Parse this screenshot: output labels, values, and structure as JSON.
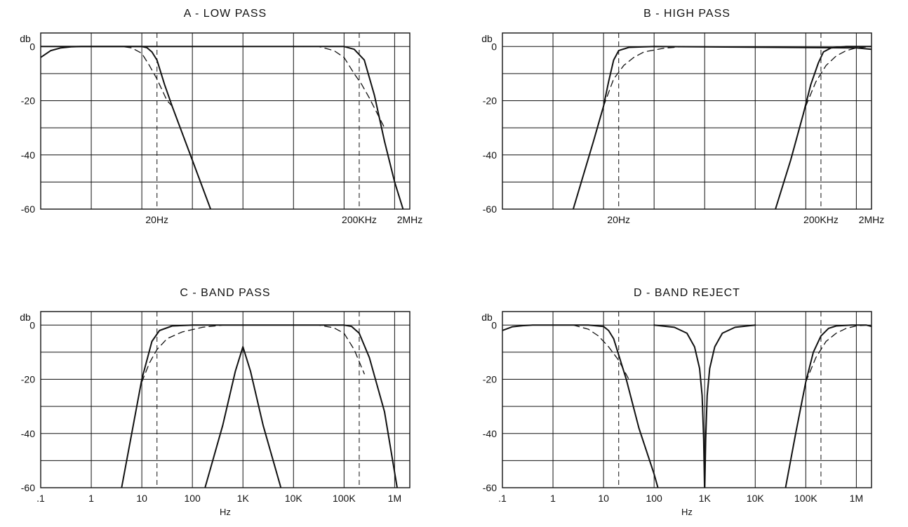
{
  "chart_data": [
    {
      "type": "line",
      "title": "A - LOW PASS",
      "ylabel": "db",
      "xlabel": "",
      "xscale": "log",
      "x_decades": [
        -1,
        6.3
      ],
      "ylim": [
        -60,
        5
      ],
      "grid": true,
      "y_ticks": [
        "0",
        "-20",
        "-40",
        "-60"
      ],
      "x_ticks": [
        {
          "label": "20Hz",
          "log10": 1.3
        },
        {
          "label": "200KHz",
          "log10": 5.3
        },
        {
          "label": "2MHz",
          "log10": 6.3
        }
      ],
      "markers_log10": [
        1.3,
        5.3
      ],
      "series": [
        {
          "style": "solid",
          "x_log10": [
            -1,
            -0.8,
            -0.6,
            -0.4,
            -0.2,
            0,
            0.5,
            1,
            1.3,
            5,
            5.2,
            5.4,
            5.6,
            5.8,
            6.0,
            6.3
          ],
          "y": [
            -4,
            -1.5,
            -0.5,
            -0.1,
            0,
            0,
            0,
            0,
            0,
            0,
            -1,
            -5,
            -18,
            -35,
            -50,
            -68
          ]
        },
        {
          "style": "solid",
          "x_log10": [
            -1,
            0,
            1.0,
            1.1,
            1.2,
            1.3,
            1.45,
            1.6,
            2.0,
            2.4
          ],
          "y": [
            0,
            0,
            0,
            -0.4,
            -2,
            -5,
            -14,
            -22,
            -42,
            -62
          ]
        },
        {
          "style": "dashed",
          "x_log10": [
            -1,
            0,
            0.6,
            0.8,
            1.0,
            1.15,
            1.3,
            1.5,
            1.6
          ],
          "y": [
            0,
            0,
            0,
            -0.5,
            -2.5,
            -7,
            -12,
            -20,
            -22
          ]
        },
        {
          "style": "dashed",
          "x_log10": [
            4.0,
            4.5,
            4.8,
            5.0,
            5.2,
            5.35,
            5.5,
            5.8
          ],
          "y": [
            0,
            0,
            -1.5,
            -4,
            -10,
            -14,
            -19,
            -30
          ]
        }
      ]
    },
    {
      "type": "line",
      "title": "B - HIGH PASS",
      "ylabel": "db",
      "xlabel": "",
      "xscale": "log",
      "x_decades": [
        -1,
        6.3
      ],
      "ylim": [
        -60,
        5
      ],
      "grid": true,
      "y_ticks": [
        "0",
        "-20",
        "-40",
        "-60"
      ],
      "x_ticks": [
        {
          "label": "20Hz",
          "log10": 1.3
        },
        {
          "label": "200KHz",
          "log10": 5.3
        },
        {
          "label": "2MHz",
          "log10": 6.3
        }
      ],
      "markers_log10": [
        1.3,
        5.3
      ],
      "series": [
        {
          "style": "solid",
          "x_log10": [
            0.4,
            0.8,
            1.0,
            1.1,
            1.2,
            1.3,
            1.5,
            2.0,
            6.0,
            6.3
          ],
          "y": [
            -60,
            -35,
            -22,
            -13,
            -5,
            -1.5,
            -0.3,
            0,
            -0.5,
            -1
          ]
        },
        {
          "style": "dashed",
          "x_log10": [
            1.0,
            1.2,
            1.4,
            1.6,
            1.8,
            2.2,
            2.6
          ],
          "y": [
            -22,
            -12,
            -7,
            -4,
            -2,
            -0.6,
            0
          ]
        },
        {
          "style": "solid",
          "x_log10": [
            4.4,
            4.7,
            4.95,
            5.1,
            5.25,
            5.35,
            5.5,
            5.8,
            6.3
          ],
          "y": [
            -60,
            -42,
            -25,
            -14,
            -6,
            -2,
            -0.5,
            0,
            0
          ]
        },
        {
          "style": "dashed",
          "x_log10": [
            5.0,
            5.2,
            5.4,
            5.6,
            5.8,
            6.0,
            6.3
          ],
          "y": [
            -22,
            -13,
            -7,
            -3.5,
            -1.5,
            -0.5,
            0
          ]
        }
      ]
    },
    {
      "type": "line",
      "title": "C - BAND PASS",
      "ylabel": "db",
      "xlabel": "Hz",
      "xscale": "log",
      "x_decades": [
        -1,
        6.3
      ],
      "ylim": [
        -60,
        5
      ],
      "grid": true,
      "y_ticks": [
        "0",
        "-20",
        "-40",
        "-60"
      ],
      "x_ticks": [
        {
          "label": ".1",
          "log10": -1
        },
        {
          "label": "1",
          "log10": 0
        },
        {
          "label": "10",
          "log10": 1
        },
        {
          "label": "100",
          "log10": 2
        },
        {
          "label": "1K",
          "log10": 3
        },
        {
          "label": "10K",
          "log10": 4
        },
        {
          "label": "100K",
          "log10": 5
        },
        {
          "label": "1M",
          "log10": 6
        }
      ],
      "markers_log10": [
        1.3,
        5.3
      ],
      "series": [
        {
          "style": "solid",
          "x_log10": [
            0.6,
            0.8,
            1.0,
            1.1,
            1.2,
            1.35,
            1.6,
            2.0,
            5.0,
            5.15,
            5.3,
            5.5,
            5.8,
            6.05
          ],
          "y": [
            -60,
            -40,
            -20,
            -13,
            -6,
            -2,
            -0.3,
            0,
            0,
            -0.5,
            -3,
            -12,
            -32,
            -60
          ]
        },
        {
          "style": "dashed",
          "x_log10": [
            1.0,
            1.15,
            1.3,
            1.5,
            1.8,
            2.2,
            2.6,
            4.5,
            4.8,
            5.0,
            5.2,
            5.4
          ],
          "y": [
            -21,
            -14,
            -9,
            -5,
            -2.5,
            -0.8,
            0,
            0,
            -1,
            -3,
            -9,
            -18
          ]
        },
        {
          "style": "solid",
          "x_log10": [
            2.25,
            2.6,
            2.85,
            3.0,
            3.15,
            3.4,
            3.75
          ],
          "y": [
            -60,
            -37,
            -17,
            -8,
            -17,
            -37,
            -60
          ]
        }
      ]
    },
    {
      "type": "line",
      "title": "D - BAND REJECT",
      "ylabel": "db",
      "xlabel": "Hz",
      "xscale": "log",
      "x_decades": [
        -1,
        6.3
      ],
      "ylim": [
        -60,
        5
      ],
      "grid": true,
      "y_ticks": [
        "0",
        "-20",
        "-40",
        "-60"
      ],
      "x_ticks": [
        {
          "label": ".1",
          "log10": -1
        },
        {
          "label": "1",
          "log10": 0
        },
        {
          "label": "10",
          "log10": 1
        },
        {
          "label": "100",
          "log10": 2
        },
        {
          "label": "1K",
          "log10": 3
        },
        {
          "label": "10K",
          "log10": 4
        },
        {
          "label": "100K",
          "log10": 5
        },
        {
          "label": "1M",
          "log10": 6
        }
      ],
      "markers_log10": [
        1.3,
        5.3
      ],
      "series": [
        {
          "style": "solid",
          "x_log10": [
            -1,
            -0.8,
            -0.6,
            -0.4,
            0,
            0.7,
            1.0,
            1.1,
            1.2,
            1.3,
            1.45,
            1.7,
            2.0,
            2.15
          ],
          "y": [
            -2,
            -0.6,
            -0.2,
            0,
            0,
            0,
            -0.5,
            -2,
            -5,
            -11,
            -20,
            -38,
            -55,
            -65
          ]
        },
        {
          "style": "dashed",
          "x_log10": [
            0.4,
            0.7,
            0.9,
            1.1,
            1.3,
            1.5
          ],
          "y": [
            0,
            -1.5,
            -4,
            -8,
            -13,
            -20
          ]
        },
        {
          "style": "solid",
          "x_log10": [
            2.0,
            2.4,
            2.65,
            2.8,
            2.9,
            2.95,
            2.98,
            3.0,
            3.02,
            3.05,
            3.1,
            3.2,
            3.35,
            3.6,
            4.0
          ],
          "y": [
            0,
            -0.8,
            -3,
            -8,
            -16,
            -26,
            -42,
            -62,
            -42,
            -26,
            -16,
            -8,
            -3,
            -0.8,
            0
          ]
        },
        {
          "style": "solid",
          "x_log10": [
            4.6,
            4.8,
            5.0,
            5.15,
            5.3,
            5.45,
            5.6,
            5.9,
            6.2,
            6.3
          ],
          "y": [
            -60,
            -40,
            -21,
            -10,
            -4,
            -1.2,
            -0.3,
            0,
            0,
            -0.5
          ]
        },
        {
          "style": "dashed",
          "x_log10": [
            5.0,
            5.2,
            5.4,
            5.6,
            5.8,
            6.0,
            6.2
          ],
          "y": [
            -21,
            -12,
            -6,
            -3,
            -1.2,
            -0.3,
            0
          ]
        }
      ]
    }
  ]
}
